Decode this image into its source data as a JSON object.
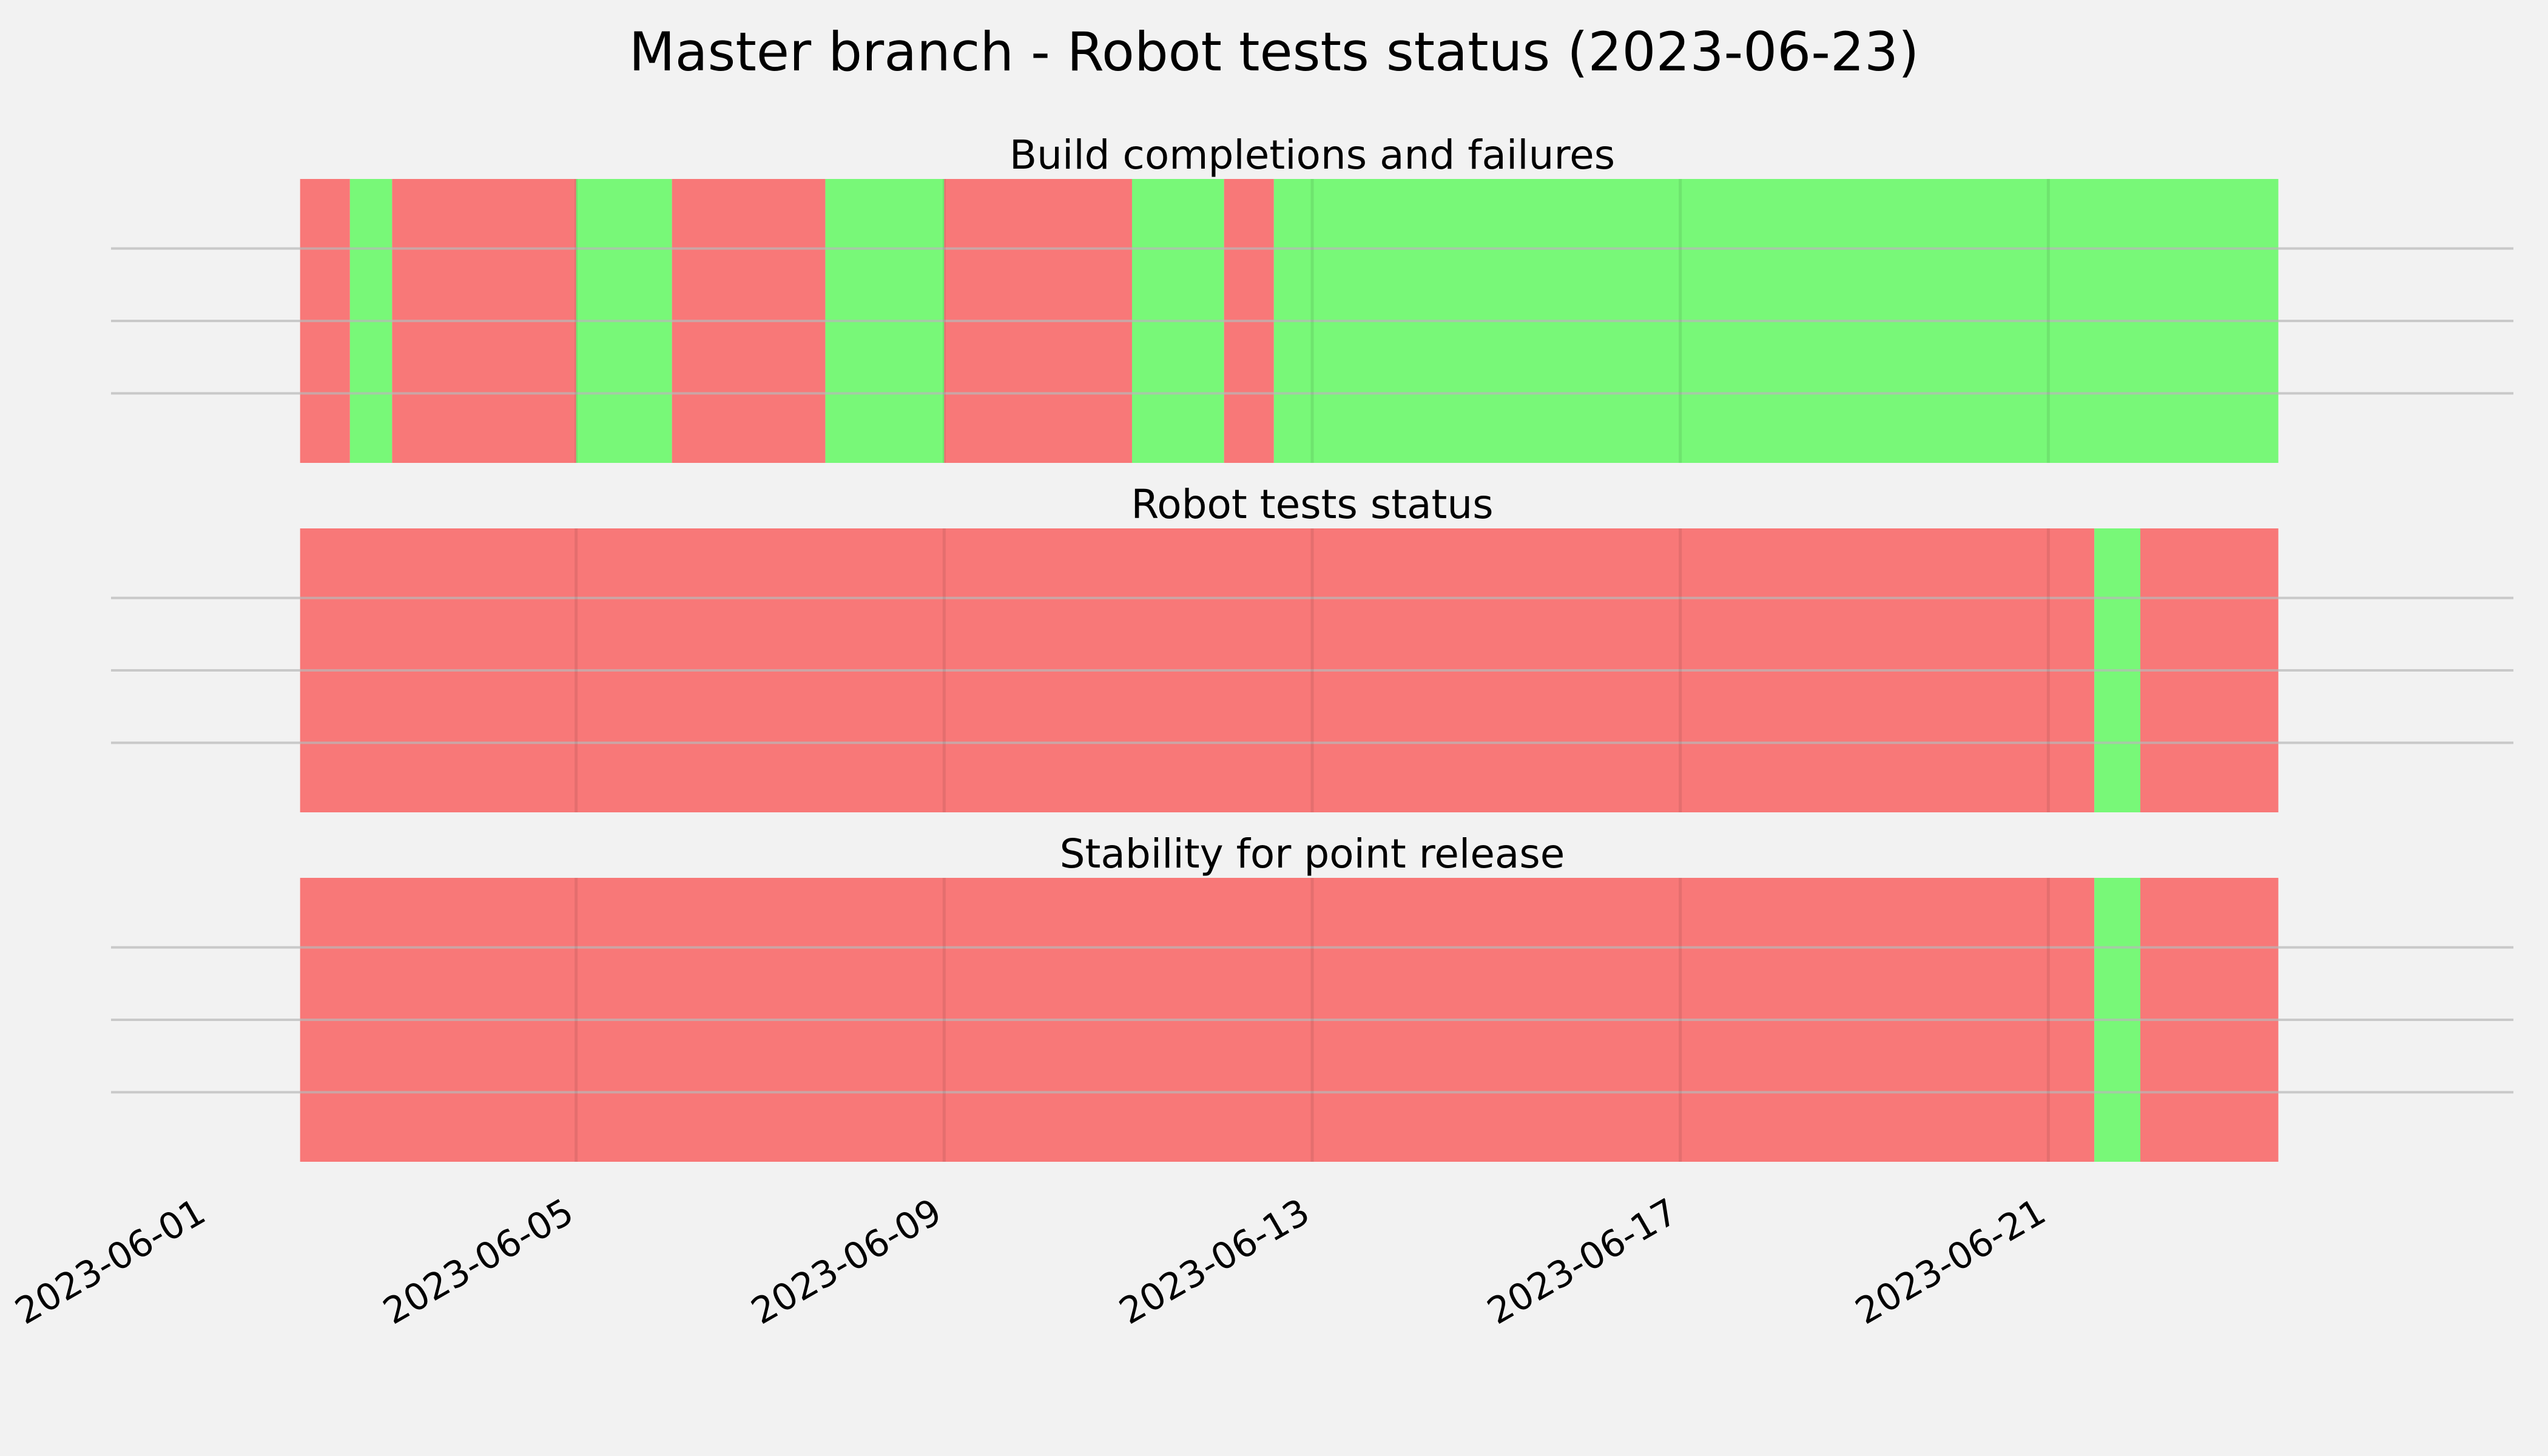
{
  "chart_data": {
    "type": "timeline",
    "title": "Master branch - Robot tests status (2023-06-23)",
    "x_axis": {
      "type": "date",
      "range": [
        "2023-06-01",
        "2023-06-25"
      ],
      "ticks": [
        "2023-06-01",
        "2023-06-05",
        "2023-06-09",
        "2023-06-13",
        "2023-06-17",
        "2023-06-21"
      ],
      "tick_rotation": 30
    },
    "grid": true,
    "colors": {
      "pass": "#78f878",
      "fail": "#f87878",
      "background": "#f2f2f2",
      "grid": "#cccccc"
    },
    "panels": [
      {
        "title": "Build completions and failures",
        "segments": [
          {
            "start": "2023-06-02 00:00",
            "end": "2023-06-02 13:00",
            "status": "fail"
          },
          {
            "start": "2023-06-02 13:00",
            "end": "2023-06-03 00:00",
            "status": "pass"
          },
          {
            "start": "2023-06-03 00:00",
            "end": "2023-06-05 00:00",
            "status": "fail"
          },
          {
            "start": "2023-06-05 00:00",
            "end": "2023-06-06 01:00",
            "status": "pass"
          },
          {
            "start": "2023-06-06 01:00",
            "end": "2023-06-07 17:00",
            "status": "fail"
          },
          {
            "start": "2023-06-07 17:00",
            "end": "2023-06-09 00:00",
            "status": "pass"
          },
          {
            "start": "2023-06-09 00:00",
            "end": "2023-06-11 01:00",
            "status": "fail"
          },
          {
            "start": "2023-06-11 01:00",
            "end": "2023-06-12 01:00",
            "status": "pass"
          },
          {
            "start": "2023-06-12 01:00",
            "end": "2023-06-12 14:00",
            "status": "fail"
          },
          {
            "start": "2023-06-12 14:00",
            "end": "2023-06-23 12:00",
            "status": "pass"
          }
        ]
      },
      {
        "title": "Robot tests status",
        "segments": [
          {
            "start": "2023-06-02 00:00",
            "end": "2023-06-21 12:00",
            "status": "fail"
          },
          {
            "start": "2023-06-21 12:00",
            "end": "2023-06-22 00:00",
            "status": "pass"
          },
          {
            "start": "2023-06-22 00:00",
            "end": "2023-06-23 12:00",
            "status": "fail"
          }
        ]
      },
      {
        "title": "Stability for point release",
        "segments": [
          {
            "start": "2023-06-02 00:00",
            "end": "2023-06-21 12:00",
            "status": "fail"
          },
          {
            "start": "2023-06-21 12:00",
            "end": "2023-06-22 00:00",
            "status": "pass"
          },
          {
            "start": "2023-06-22 00:00",
            "end": "2023-06-23 12:00",
            "status": "fail"
          }
        ]
      }
    ]
  }
}
